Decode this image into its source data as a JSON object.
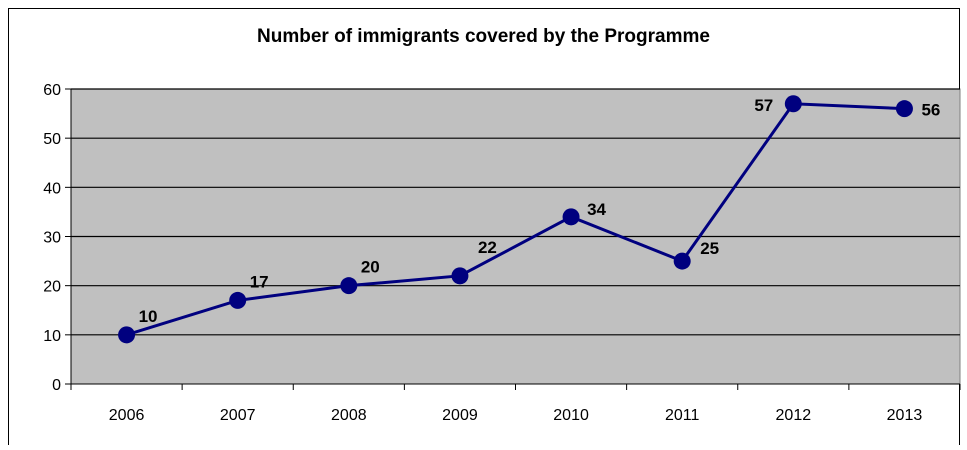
{
  "chart_data": {
    "type": "line",
    "title": "Number of immigrants covered by the Programme",
    "categories": [
      "2006",
      "2007",
      "2008",
      "2009",
      "2010",
      "2011",
      "2012",
      "2013"
    ],
    "series": [
      {
        "values": [
          10,
          17,
          20,
          22,
          34,
          25,
          57,
          56
        ],
        "color": "#00007f"
      }
    ],
    "data_labels": [
      "10",
      "17",
      "20",
      "22",
      "34",
      "25",
      "57",
      "56"
    ],
    "ylim": [
      0,
      60
    ],
    "yticks": [
      "0",
      "10",
      "20",
      "30",
      "40",
      "50",
      "60"
    ],
    "xlabel": "",
    "ylabel": "",
    "grid": true,
    "plot_background": "#c0c0c0",
    "legend": "none"
  }
}
